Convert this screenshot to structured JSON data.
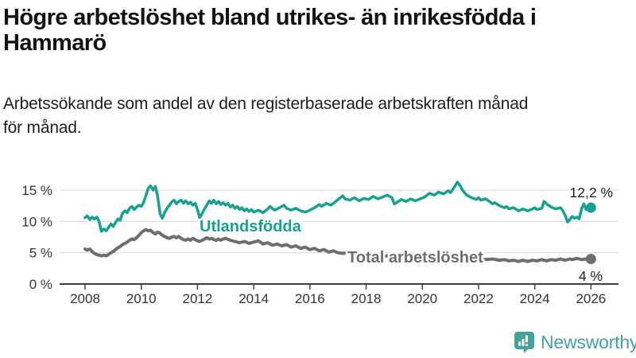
{
  "header": {
    "title_line1": "Högre arbetslöshet bland utrikes- än inrikesfödda i",
    "title_line2": "Hammarö",
    "subtitle_line1": "Arbetssökande som andel av den registerbaserade arbetskraften månad",
    "subtitle_line2": "för månad."
  },
  "branding": {
    "logo_text": "Newsworthy",
    "logo_color": "#45a29b"
  },
  "chart_data": {
    "type": "line",
    "unit": "%",
    "x_axis": {
      "ticks": [
        2008,
        2010,
        2012,
        2014,
        2016,
        2018,
        2020,
        2022,
        2024,
        2026
      ],
      "range": [
        2007.1,
        2027.0
      ]
    },
    "y_axis": {
      "ticks": [
        0,
        5,
        10,
        15
      ],
      "tick_suffix": " %",
      "range": [
        0,
        17.5
      ],
      "gridlines": true
    },
    "series": [
      {
        "name": "Utlandsfödda",
        "color": "#17a28f",
        "end_value": 12.2,
        "end_label": "12,2 %",
        "points": [
          [
            2008.0,
            10.6
          ],
          [
            2008.08,
            10.9
          ],
          [
            2008.17,
            10.3
          ],
          [
            2008.25,
            10.7
          ],
          [
            2008.33,
            10.4
          ],
          [
            2008.42,
            10.7
          ],
          [
            2008.5,
            10.0
          ],
          [
            2008.58,
            8.4
          ],
          [
            2008.67,
            8.8
          ],
          [
            2008.75,
            8.5
          ],
          [
            2008.83,
            9.0
          ],
          [
            2008.92,
            9.6
          ],
          [
            2009.0,
            9.2
          ],
          [
            2009.08,
            9.8
          ],
          [
            2009.17,
            10.4
          ],
          [
            2009.25,
            10.2
          ],
          [
            2009.33,
            11.3
          ],
          [
            2009.42,
            11.7
          ],
          [
            2009.5,
            11.4
          ],
          [
            2009.58,
            12.1
          ],
          [
            2009.67,
            12.4
          ],
          [
            2009.75,
            11.9
          ],
          [
            2009.83,
            12.3
          ],
          [
            2009.92,
            12.6
          ],
          [
            2010.0,
            12.4
          ],
          [
            2010.08,
            13.0
          ],
          [
            2010.17,
            14.2
          ],
          [
            2010.25,
            15.3
          ],
          [
            2010.33,
            15.7
          ],
          [
            2010.42,
            15.0
          ],
          [
            2010.5,
            15.6
          ],
          [
            2010.58,
            14.1
          ],
          [
            2010.67,
            11.2
          ],
          [
            2010.75,
            10.5
          ],
          [
            2010.83,
            11.4
          ],
          [
            2010.92,
            12.1
          ],
          [
            2011.0,
            12.6
          ],
          [
            2011.08,
            13.1
          ],
          [
            2011.17,
            13.4
          ],
          [
            2011.25,
            12.8
          ],
          [
            2011.33,
            13.2
          ],
          [
            2011.42,
            13.4
          ],
          [
            2011.5,
            12.9
          ],
          [
            2011.58,
            13.3
          ],
          [
            2011.67,
            12.8
          ],
          [
            2011.75,
            13.1
          ],
          [
            2011.83,
            12.6
          ],
          [
            2011.92,
            12.9
          ],
          [
            2012.0,
            11.9
          ],
          [
            2012.08,
            10.6
          ],
          [
            2012.17,
            11.3
          ],
          [
            2012.25,
            12.0
          ],
          [
            2012.33,
            12.6
          ],
          [
            2012.42,
            13.3
          ],
          [
            2012.5,
            12.9
          ],
          [
            2012.58,
            13.4
          ],
          [
            2012.67,
            12.8
          ],
          [
            2012.75,
            13.2
          ],
          [
            2012.83,
            12.7
          ],
          [
            2012.92,
            13.0
          ],
          [
            2013.0,
            12.6
          ],
          [
            2013.08,
            12.9
          ],
          [
            2013.17,
            12.3
          ],
          [
            2013.25,
            12.6
          ],
          [
            2013.33,
            12.1
          ],
          [
            2013.42,
            12.4
          ],
          [
            2013.5,
            11.9
          ],
          [
            2013.58,
            12.2
          ],
          [
            2013.67,
            11.7
          ],
          [
            2013.75,
            12.0
          ],
          [
            2013.83,
            11.6
          ],
          [
            2013.92,
            11.9
          ],
          [
            2014.0,
            11.5
          ],
          [
            2014.17,
            11.8
          ],
          [
            2014.33,
            11.4
          ],
          [
            2014.5,
            12.0
          ],
          [
            2014.58,
            12.4
          ],
          [
            2014.75,
            11.8
          ],
          [
            2014.92,
            12.2
          ],
          [
            2015.08,
            12.6
          ],
          [
            2015.17,
            12.1
          ],
          [
            2015.33,
            11.8
          ],
          [
            2015.5,
            12.1
          ],
          [
            2015.67,
            11.7
          ],
          [
            2015.83,
            11.5
          ],
          [
            2016.0,
            11.8
          ],
          [
            2016.17,
            12.2
          ],
          [
            2016.33,
            12.7
          ],
          [
            2016.42,
            12.4
          ],
          [
            2016.58,
            12.9
          ],
          [
            2016.75,
            12.6
          ],
          [
            2016.92,
            13.2
          ],
          [
            2017.08,
            13.8
          ],
          [
            2017.17,
            14.1
          ],
          [
            2017.25,
            13.6
          ],
          [
            2017.42,
            13.4
          ],
          [
            2017.58,
            13.8
          ],
          [
            2017.75,
            13.3
          ],
          [
            2017.92,
            13.7
          ],
          [
            2018.08,
            13.5
          ],
          [
            2018.25,
            14.0
          ],
          [
            2018.42,
            13.6
          ],
          [
            2018.58,
            13.9
          ],
          [
            2018.75,
            14.2
          ],
          [
            2018.92,
            13.8
          ],
          [
            2019.0,
            12.8
          ],
          [
            2019.08,
            13.0
          ],
          [
            2019.25,
            13.5
          ],
          [
            2019.42,
            13.2
          ],
          [
            2019.58,
            13.6
          ],
          [
            2019.75,
            13.3
          ],
          [
            2019.92,
            13.6
          ],
          [
            2020.08,
            13.9
          ],
          [
            2020.25,
            14.5
          ],
          [
            2020.42,
            14.2
          ],
          [
            2020.58,
            14.7
          ],
          [
            2020.75,
            14.4
          ],
          [
            2020.92,
            14.9
          ],
          [
            2021.0,
            14.6
          ],
          [
            2021.08,
            15.1
          ],
          [
            2021.17,
            15.7
          ],
          [
            2021.25,
            16.3
          ],
          [
            2021.33,
            15.8
          ],
          [
            2021.42,
            15.1
          ],
          [
            2021.5,
            14.6
          ],
          [
            2021.58,
            14.2
          ],
          [
            2021.75,
            13.8
          ],
          [
            2021.92,
            13.5
          ],
          [
            2022.0,
            13.8
          ],
          [
            2022.08,
            13.4
          ],
          [
            2022.25,
            13.6
          ],
          [
            2022.42,
            13.1
          ],
          [
            2022.5,
            12.8
          ],
          [
            2022.58,
            13.0
          ],
          [
            2022.75,
            12.5
          ],
          [
            2022.92,
            12.2
          ],
          [
            2023.0,
            12.4
          ],
          [
            2023.08,
            12.0
          ],
          [
            2023.25,
            12.2
          ],
          [
            2023.42,
            11.7
          ],
          [
            2023.58,
            12.0
          ],
          [
            2023.75,
            11.7
          ],
          [
            2023.92,
            12.0
          ],
          [
            2024.0,
            12.2
          ],
          [
            2024.08,
            11.9
          ],
          [
            2024.25,
            12.1
          ],
          [
            2024.33,
            13.2
          ],
          [
            2024.42,
            12.8
          ],
          [
            2024.58,
            12.3
          ],
          [
            2024.75,
            12.0
          ],
          [
            2024.92,
            12.2
          ],
          [
            2025.0,
            11.7
          ],
          [
            2025.08,
            11.0
          ],
          [
            2025.17,
            9.9
          ],
          [
            2025.25,
            10.3
          ],
          [
            2025.33,
            10.8
          ],
          [
            2025.42,
            10.5
          ],
          [
            2025.5,
            10.7
          ],
          [
            2025.58,
            10.4
          ],
          [
            2025.67,
            12.1
          ],
          [
            2025.75,
            12.8
          ],
          [
            2025.83,
            11.9
          ],
          [
            2025.92,
            12.3
          ],
          [
            2026.0,
            12.2
          ]
        ]
      },
      {
        "name": "Total arbetslöshet",
        "color": "#6e6e6e",
        "end_value": 4,
        "end_label": "4 %",
        "points": [
          [
            2008.0,
            5.6
          ],
          [
            2008.08,
            5.4
          ],
          [
            2008.17,
            5.6
          ],
          [
            2008.25,
            5.2
          ],
          [
            2008.33,
            4.9
          ],
          [
            2008.42,
            4.7
          ],
          [
            2008.5,
            4.6
          ],
          [
            2008.58,
            4.5
          ],
          [
            2008.67,
            4.6
          ],
          [
            2008.75,
            4.5
          ],
          [
            2008.83,
            4.7
          ],
          [
            2008.92,
            5.0
          ],
          [
            2009.0,
            5.2
          ],
          [
            2009.08,
            5.5
          ],
          [
            2009.17,
            5.8
          ],
          [
            2009.25,
            6.0
          ],
          [
            2009.33,
            6.3
          ],
          [
            2009.42,
            6.5
          ],
          [
            2009.5,
            6.7
          ],
          [
            2009.58,
            7.0
          ],
          [
            2009.67,
            7.2
          ],
          [
            2009.75,
            7.1
          ],
          [
            2009.83,
            7.4
          ],
          [
            2009.92,
            7.8
          ],
          [
            2010.0,
            8.2
          ],
          [
            2010.08,
            8.5
          ],
          [
            2010.17,
            8.7
          ],
          [
            2010.25,
            8.5
          ],
          [
            2010.33,
            8.6
          ],
          [
            2010.42,
            8.2
          ],
          [
            2010.5,
            8.0
          ],
          [
            2010.58,
            8.3
          ],
          [
            2010.67,
            8.1
          ],
          [
            2010.75,
            7.8
          ],
          [
            2010.83,
            7.6
          ],
          [
            2010.92,
            7.4
          ],
          [
            2011.0,
            7.3
          ],
          [
            2011.08,
            7.5
          ],
          [
            2011.17,
            7.6
          ],
          [
            2011.25,
            7.4
          ],
          [
            2011.33,
            7.6
          ],
          [
            2011.42,
            7.3
          ],
          [
            2011.5,
            7.1
          ],
          [
            2011.58,
            7.0
          ],
          [
            2011.67,
            7.2
          ],
          [
            2011.75,
            7.0
          ],
          [
            2011.83,
            7.3
          ],
          [
            2011.92,
            7.1
          ],
          [
            2012.0,
            6.9
          ],
          [
            2012.08,
            6.8
          ],
          [
            2012.17,
            7.0
          ],
          [
            2012.25,
            7.2
          ],
          [
            2012.33,
            7.4
          ],
          [
            2012.42,
            7.2
          ],
          [
            2012.5,
            7.3
          ],
          [
            2012.58,
            7.1
          ],
          [
            2012.67,
            7.0
          ],
          [
            2012.75,
            7.2
          ],
          [
            2012.83,
            7.0
          ],
          [
            2012.92,
            7.2
          ],
          [
            2013.0,
            7.3
          ],
          [
            2013.17,
            7.0
          ],
          [
            2013.33,
            6.8
          ],
          [
            2013.5,
            6.6
          ],
          [
            2013.67,
            6.8
          ],
          [
            2013.83,
            6.5
          ],
          [
            2014.0,
            6.7
          ],
          [
            2014.17,
            6.9
          ],
          [
            2014.33,
            6.4
          ],
          [
            2014.5,
            6.6
          ],
          [
            2014.67,
            6.2
          ],
          [
            2014.83,
            6.4
          ],
          [
            2015.0,
            6.1
          ],
          [
            2015.17,
            6.3
          ],
          [
            2015.33,
            5.9
          ],
          [
            2015.5,
            6.1
          ],
          [
            2015.67,
            5.7
          ],
          [
            2015.83,
            5.9
          ],
          [
            2016.0,
            5.5
          ],
          [
            2016.17,
            5.7
          ],
          [
            2016.33,
            5.3
          ],
          [
            2016.5,
            5.5
          ],
          [
            2016.67,
            5.1
          ],
          [
            2016.83,
            5.3
          ],
          [
            2017.0,
            5.0
          ],
          [
            2017.17,
            4.9
          ],
          [
            2017.33,
            5.0
          ],
          [
            2017.5,
            4.7
          ],
          [
            2017.67,
            4.8
          ],
          [
            2017.83,
            4.6
          ],
          [
            2018.0,
            4.7
          ],
          [
            2018.25,
            4.5
          ],
          [
            2018.5,
            4.4
          ],
          [
            2018.75,
            4.5
          ],
          [
            2019.0,
            4.3
          ],
          [
            2019.25,
            4.2
          ],
          [
            2019.5,
            4.3
          ],
          [
            2019.75,
            4.2
          ],
          [
            2020.0,
            4.3
          ],
          [
            2020.25,
            4.5
          ],
          [
            2020.5,
            4.6
          ],
          [
            2020.75,
            4.5
          ],
          [
            2021.0,
            4.4
          ],
          [
            2021.25,
            4.3
          ],
          [
            2021.5,
            4.2
          ],
          [
            2021.75,
            4.1
          ],
          [
            2022.0,
            4.0
          ],
          [
            2022.25,
            3.9
          ],
          [
            2022.5,
            4.0
          ],
          [
            2022.75,
            3.8
          ],
          [
            2022.92,
            3.9
          ],
          [
            2023.08,
            3.7
          ],
          [
            2023.25,
            3.8
          ],
          [
            2023.42,
            3.6
          ],
          [
            2023.58,
            3.8
          ],
          [
            2023.75,
            3.6
          ],
          [
            2023.92,
            3.8
          ],
          [
            2024.08,
            3.7
          ],
          [
            2024.25,
            3.9
          ],
          [
            2024.42,
            3.7
          ],
          [
            2024.58,
            3.9
          ],
          [
            2024.75,
            3.8
          ],
          [
            2024.92,
            4.0
          ],
          [
            2025.08,
            3.8
          ],
          [
            2025.25,
            4.0
          ],
          [
            2025.33,
            3.9
          ],
          [
            2025.5,
            4.1
          ],
          [
            2025.67,
            3.9
          ],
          [
            2025.83,
            4.0
          ],
          [
            2026.0,
            4.0
          ]
        ]
      }
    ]
  }
}
